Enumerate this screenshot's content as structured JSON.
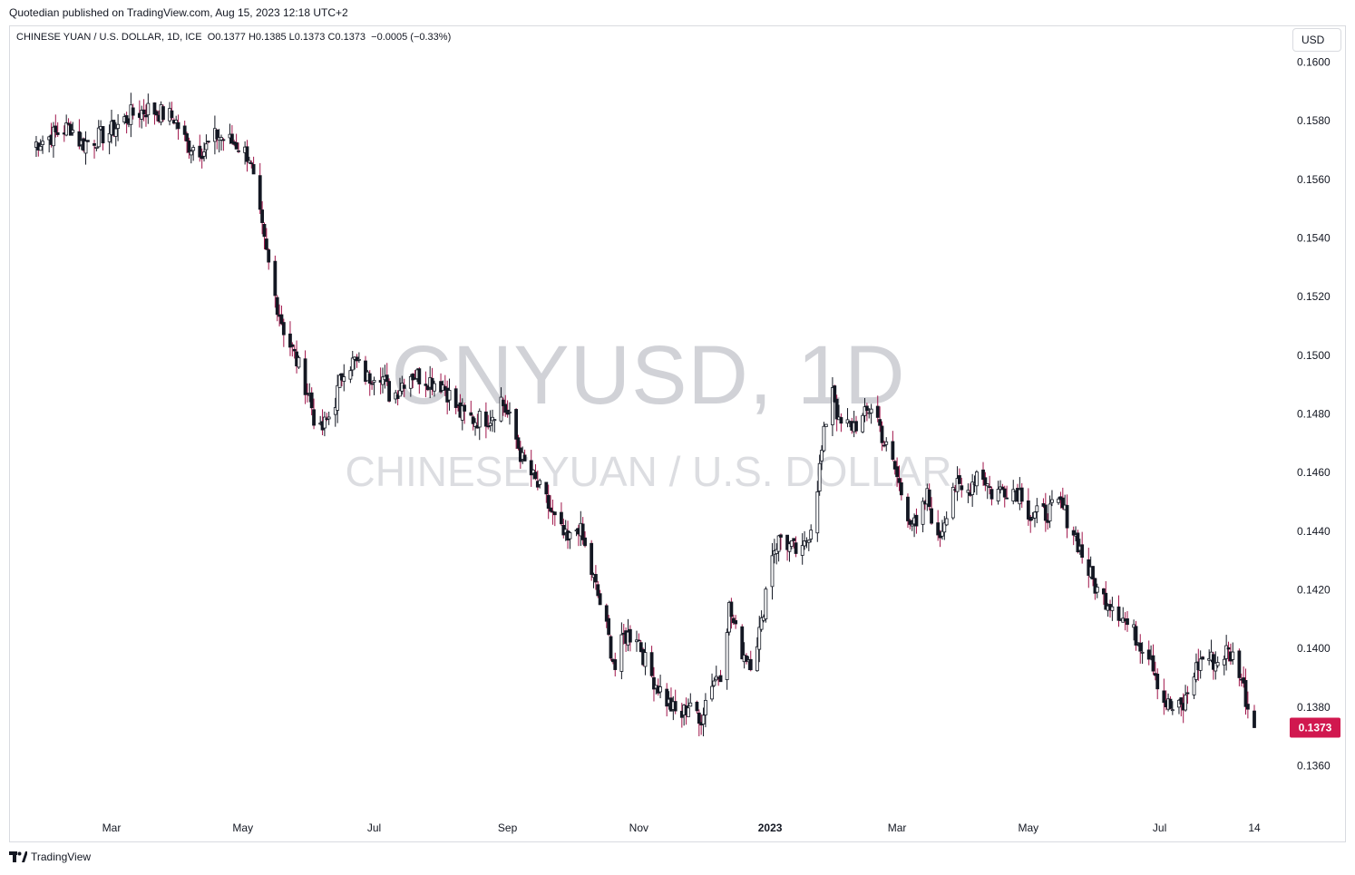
{
  "header": {
    "caption": "Quotedian published on TradingView.com, Aug 15, 2023 12:18 UTC+2"
  },
  "legend": {
    "symbol": "CHINESE YUAN / U.S. DOLLAR, 1D, ICE",
    "open": "O0.1377",
    "high": "H0.1385",
    "low": "L0.1373",
    "close": "C0.1373",
    "change": "−0.0005 (−0.33%)"
  },
  "currency_label": "USD",
  "watermark": {
    "ticker": "CNYUSD, 1D",
    "name": "CHINESE YUAN / U.S. DOLLAR"
  },
  "footer": {
    "brand": "TradingView"
  },
  "colors": {
    "up_candle_body": "#ffffff",
    "down_candle_body": "#131722",
    "up_wick": "#131722",
    "down_wick": "#a0154a",
    "last_price_badge": "#d1184f"
  },
  "chart_data": {
    "type": "candlestick",
    "y_axis": {
      "min": 0.1345,
      "max": 0.1608,
      "ticks": [
        "0.1600",
        "0.1580",
        "0.1560",
        "0.1540",
        "0.1520",
        "0.1500",
        "0.1480",
        "0.1460",
        "0.1440",
        "0.1420",
        "0.1400",
        "0.1380",
        "0.1360"
      ],
      "position": "right"
    },
    "x_axis": {
      "ticks": [
        {
          "label": "Mar",
          "date": "2022-03-01"
        },
        {
          "label": "May",
          "date": "2022-05-01"
        },
        {
          "label": "Jul",
          "date": "2022-07-01"
        },
        {
          "label": "Sep",
          "date": "2022-09-01"
        },
        {
          "label": "Nov",
          "date": "2022-11-01"
        },
        {
          "label": "2023",
          "date": "2023-01-01",
          "bold": true
        },
        {
          "label": "Mar",
          "date": "2023-03-01"
        },
        {
          "label": "May",
          "date": "2023-05-01"
        },
        {
          "label": "Jul",
          "date": "2023-07-01"
        },
        {
          "label": "14",
          "date": "2023-08-14"
        }
      ]
    },
    "last_price": {
      "value": 0.1373,
      "label": "0.1373"
    },
    "close_path": [
      [
        "2022-01-24",
        0.1572
      ],
      [
        "2022-02-10",
        0.1578
      ],
      [
        "2022-02-15",
        0.1572
      ],
      [
        "2022-02-28",
        0.1576
      ],
      [
        "2022-03-10",
        0.1582
      ],
      [
        "2022-03-18",
        0.1584
      ],
      [
        "2022-03-30",
        0.1581
      ],
      [
        "2022-04-05",
        0.1572
      ],
      [
        "2022-04-13",
        0.157
      ],
      [
        "2022-04-19",
        0.1575
      ],
      [
        "2022-04-28",
        0.1572
      ],
      [
        "2022-05-04",
        0.1568
      ],
      [
        "2022-05-07",
        0.1555
      ],
      [
        "2022-05-11",
        0.1538
      ],
      [
        "2022-05-16",
        0.152
      ],
      [
        "2022-05-20",
        0.1509
      ],
      [
        "2022-05-26",
        0.1498
      ],
      [
        "2022-06-01",
        0.1486
      ],
      [
        "2022-06-05",
        0.1472
      ],
      [
        "2022-06-12",
        0.1482
      ],
      [
        "2022-06-17",
        0.1496
      ],
      [
        "2022-06-22",
        0.1498
      ],
      [
        "2022-06-28",
        0.1492
      ],
      [
        "2022-07-03",
        0.1496
      ],
      [
        "2022-07-09",
        0.1485
      ],
      [
        "2022-07-17",
        0.1494
      ],
      [
        "2022-07-25",
        0.1492
      ],
      [
        "2022-08-02",
        0.149
      ],
      [
        "2022-08-10",
        0.148
      ],
      [
        "2022-08-17",
        0.1478
      ],
      [
        "2022-08-24",
        0.1479
      ],
      [
        "2022-08-29",
        0.1485
      ],
      [
        "2022-09-03",
        0.1476
      ],
      [
        "2022-09-08",
        0.1464
      ],
      [
        "2022-09-13",
        0.1458
      ],
      [
        "2022-09-19",
        0.145
      ],
      [
        "2022-09-24",
        0.1442
      ],
      [
        "2022-09-29",
        0.1436
      ],
      [
        "2022-10-04",
        0.1442
      ],
      [
        "2022-10-10",
        0.1426
      ],
      [
        "2022-10-16",
        0.141
      ],
      [
        "2022-10-21",
        0.1393
      ],
      [
        "2022-10-25",
        0.1404
      ],
      [
        "2022-10-31",
        0.1405
      ],
      [
        "2022-11-05",
        0.1393
      ],
      [
        "2022-11-10",
        0.1387
      ],
      [
        "2022-11-15",
        0.1381
      ],
      [
        "2022-11-20",
        0.1376
      ],
      [
        "2022-11-25",
        0.1382
      ],
      [
        "2022-11-29",
        0.1374
      ],
      [
        "2022-12-04",
        0.1388
      ],
      [
        "2022-12-09",
        0.1392
      ],
      [
        "2022-12-13",
        0.1414
      ],
      [
        "2022-12-18",
        0.14
      ],
      [
        "2022-12-23",
        0.1396
      ],
      [
        "2022-12-28",
        0.1408
      ],
      [
        "2023-01-01",
        0.1432
      ],
      [
        "2023-01-06",
        0.1438
      ],
      [
        "2023-01-11",
        0.1434
      ],
      [
        "2023-01-16",
        0.1432
      ],
      [
        "2023-01-21",
        0.1445
      ],
      [
        "2023-01-27",
        0.1478
      ],
      [
        "2023-01-30",
        0.149
      ],
      [
        "2023-02-02",
        0.1476
      ],
      [
        "2023-02-08",
        0.1476
      ],
      [
        "2023-02-13",
        0.1478
      ],
      [
        "2023-02-18",
        0.1484
      ],
      [
        "2023-02-23",
        0.147
      ],
      [
        "2023-02-28",
        0.1461
      ],
      [
        "2023-03-05",
        0.1448
      ],
      [
        "2023-03-10",
        0.144
      ],
      [
        "2023-03-15",
        0.1452
      ],
      [
        "2023-03-20",
        0.1436
      ],
      [
        "2023-03-27",
        0.1456
      ],
      [
        "2023-04-02",
        0.1452
      ],
      [
        "2023-04-08",
        0.1462
      ],
      [
        "2023-04-14",
        0.1453
      ],
      [
        "2023-04-22",
        0.1455
      ],
      [
        "2023-04-28",
        0.1453
      ],
      [
        "2023-05-02",
        0.1445
      ],
      [
        "2023-05-09",
        0.1446
      ],
      [
        "2023-05-16",
        0.1449
      ],
      [
        "2023-05-22",
        0.144
      ],
      [
        "2023-05-28",
        0.1428
      ],
      [
        "2023-06-03",
        0.1418
      ],
      [
        "2023-06-10",
        0.1415
      ],
      [
        "2023-06-16",
        0.1408
      ],
      [
        "2023-06-22",
        0.1402
      ],
      [
        "2023-06-27",
        0.1398
      ],
      [
        "2023-07-02",
        0.1383
      ],
      [
        "2023-07-07",
        0.1379
      ],
      [
        "2023-07-12",
        0.138
      ],
      [
        "2023-07-17",
        0.1392
      ],
      [
        "2023-07-22",
        0.1398
      ],
      [
        "2023-07-27",
        0.1395
      ],
      [
        "2023-08-01",
        0.1399
      ],
      [
        "2023-08-06",
        0.1396
      ],
      [
        "2023-08-11",
        0.138
      ],
      [
        "2023-08-14",
        0.1373
      ]
    ]
  }
}
